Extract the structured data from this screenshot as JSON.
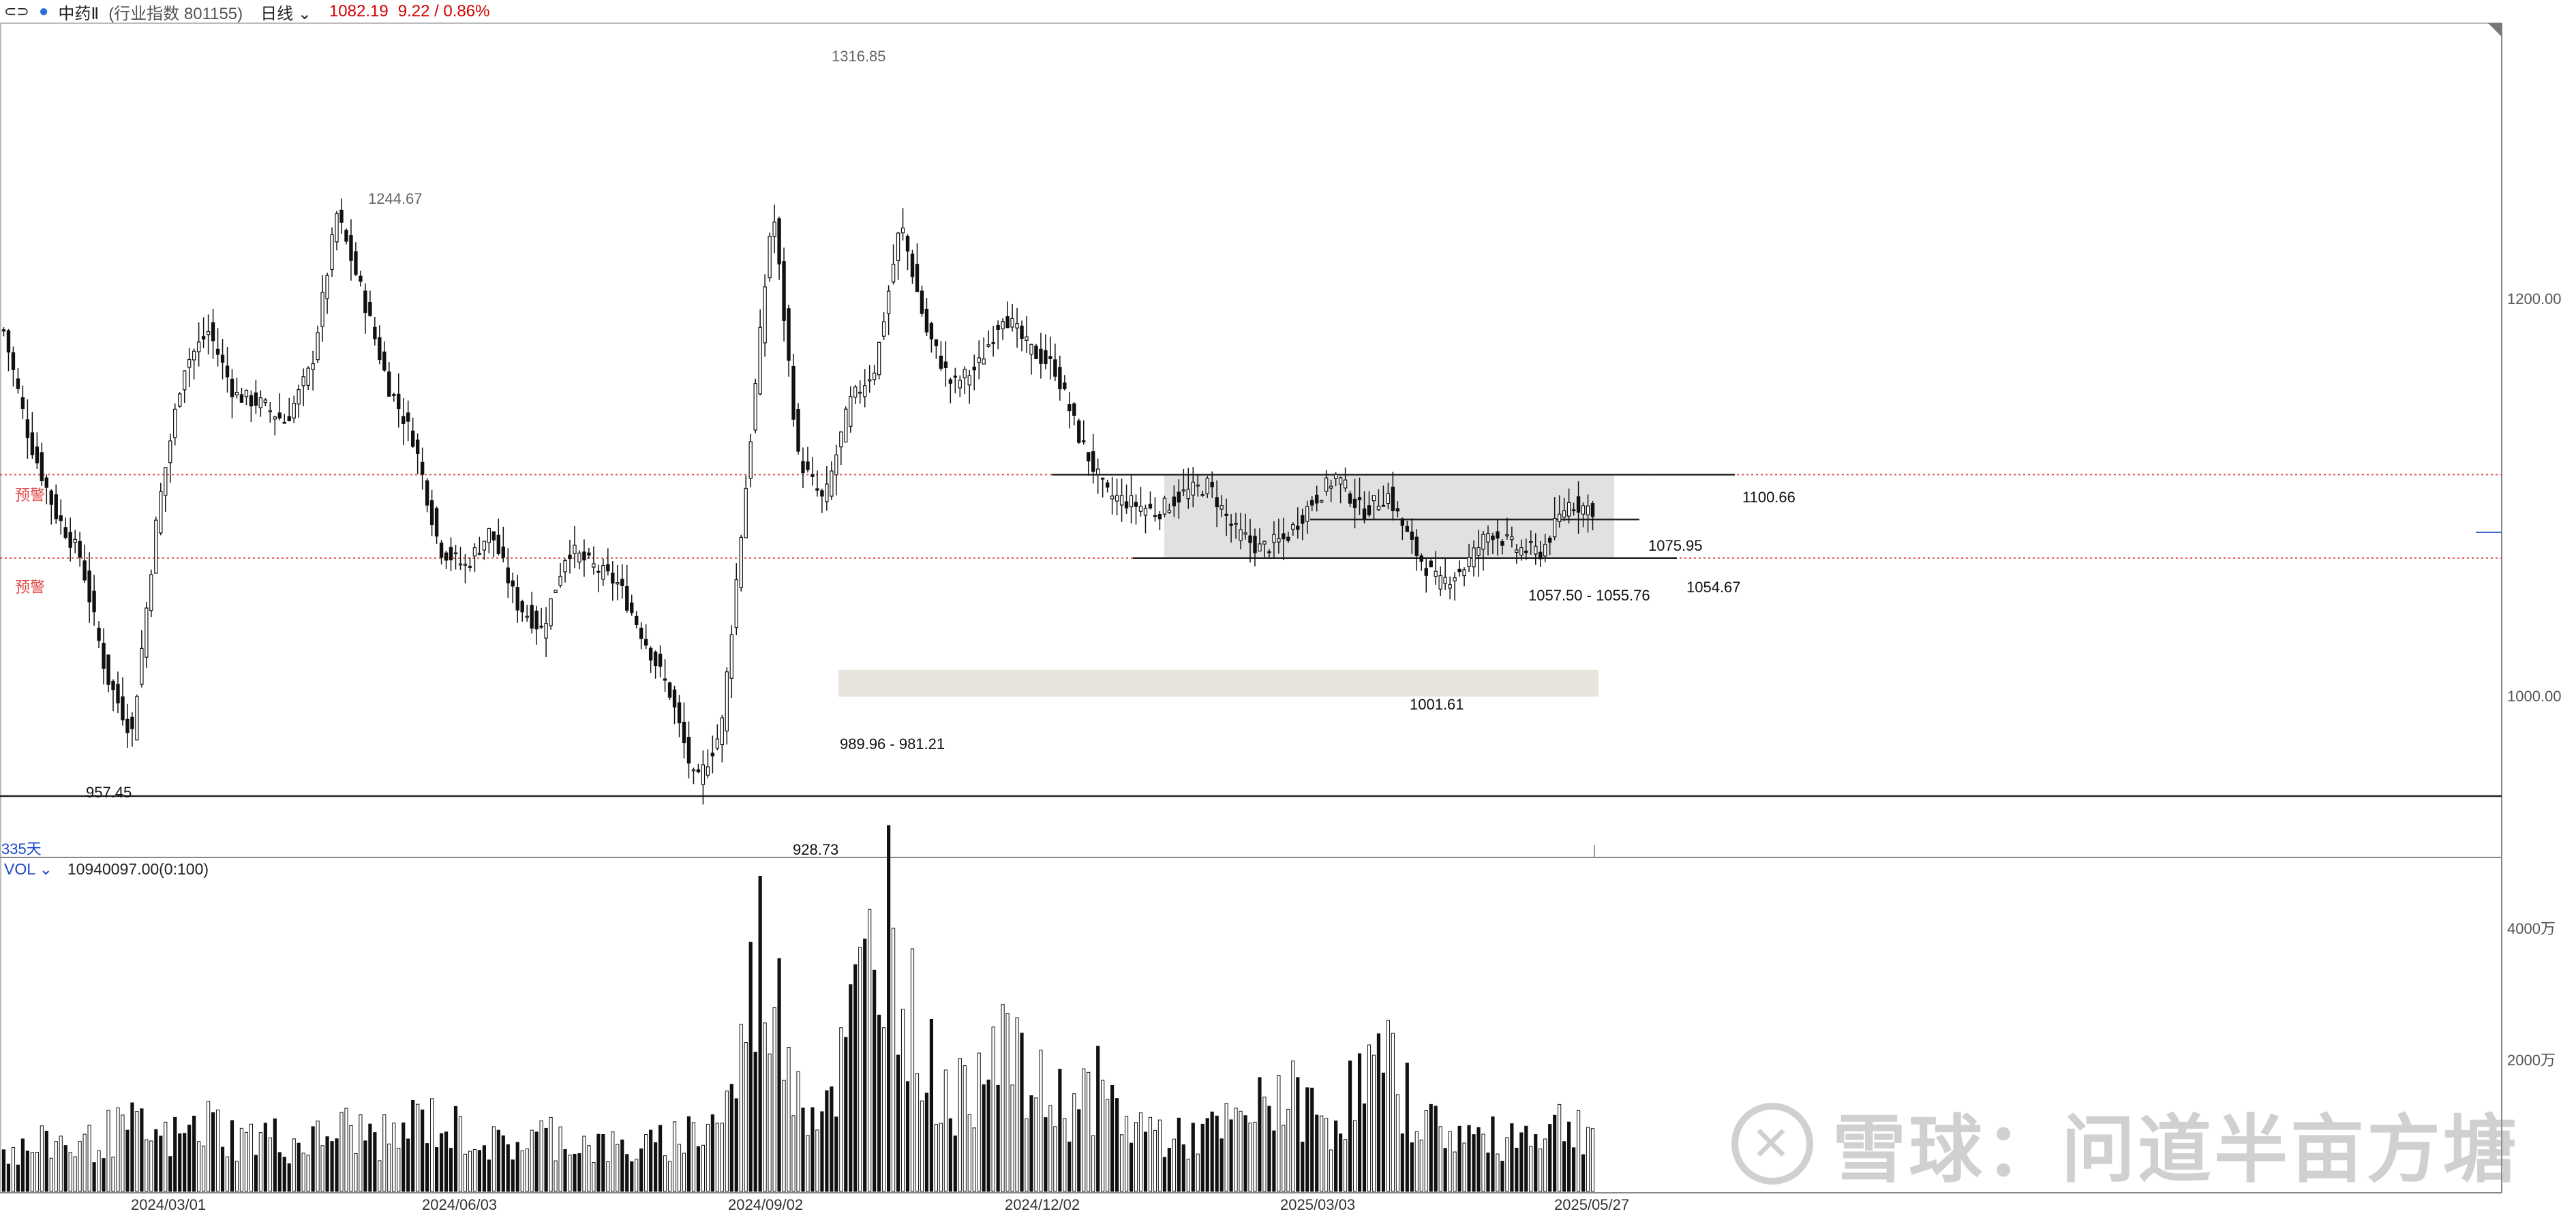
{
  "header": {
    "link_icon": "link-icon",
    "name": "中药Ⅱ",
    "meta": "(行业指数 801155)",
    "period": "日线",
    "price": "1082.19",
    "change": "9.22 / 0.86%"
  },
  "y_axis": {
    "ticks": [
      "1200.00",
      "1000.00"
    ]
  },
  "vol_axis": {
    "ticks": [
      "4000万",
      "2000万"
    ]
  },
  "volume_header": {
    "label": "VOL",
    "value": "10940097.00(0:100)"
  },
  "span_label": "335天",
  "warning_label": "预警",
  "annotations": {
    "high_main": "1316.85",
    "high_left": "1244.67",
    "low_left": "957.45",
    "low_main": "928.73",
    "gap_zone": "989.96 - 981.21",
    "low_mid": "1001.61",
    "resist": "1100.66",
    "mid": "1075.95",
    "support": "1054.67",
    "gap_small": "1057.50 - 1055.76"
  },
  "watermark": "雪球：问道半亩方塘",
  "colors": {
    "up": "#ffffff",
    "down": "#111111",
    "warning": "#e04848",
    "zone": "#e0e0e0",
    "gapzone": "#e9e6df"
  },
  "chart_data": {
    "type": "candlestick",
    "ylim": [
      900,
      1340
    ],
    "x_dates": [
      "2024/03/01",
      "2024/06/03",
      "2024/09/02",
      "2024/12/02",
      "2025/03/03",
      "2025/05/27"
    ],
    "anchors": [
      1180,
      1120,
      1080,
      1055,
      990,
      957.45,
      1080,
      1160,
      1180,
      1145,
      1140,
      1130,
      1160,
      1244.67,
      1200,
      1150,
      1120,
      1060,
      1050,
      1070,
      1030,
      1015,
      1060,
      1050,
      1040,
      1010,
      980,
      928.73,
      960,
      1100,
      1250,
      1110,
      1085,
      1140,
      1160,
      1240,
      1180,
      1150,
      1160,
      1190,
      1170,
      1160,
      1120,
      1090,
      1085,
      1080,
      1090,
      1095,
      1070,
      1060,
      1065,
      1085,
      1100,
      1080,
      1090,
      1060,
      1040,
      1050,
      1070,
      1060,
      1058,
      1085,
      1082
    ],
    "price_lines": [
      1100.66,
      1075.95,
      1054.67
    ],
    "warning_lines": [
      1100.66,
      1054.67
    ],
    "zones": [
      {
        "from": 1100.66,
        "to": 1054.67
      },
      {
        "from": 989.96,
        "to": 981.21
      }
    ],
    "volume_ylim": [
      0,
      5000
    ],
    "volume_ticks": [
      4000,
      2000
    ],
    "volume_anchors": [
      600,
      650,
      800,
      700,
      900,
      1000,
      800,
      900,
      1100,
      800,
      900,
      750,
      800,
      1000,
      900,
      800,
      1200,
      1000,
      900,
      700,
      800,
      900,
      800,
      700,
      650,
      700,
      900,
      1000,
      1500,
      3800,
      2500,
      1300,
      1800,
      3300,
      4600,
      2500,
      1600,
      1400,
      3000,
      1800,
      1500,
      1400,
      1600,
      1100,
      1000,
      800,
      900,
      1000,
      1200,
      1600,
      1300,
      1100,
      1700,
      2000,
      1400,
      1000,
      900,
      800,
      900,
      1000,
      1100,
      1000
    ],
    "last_volume": "10940097.00"
  }
}
